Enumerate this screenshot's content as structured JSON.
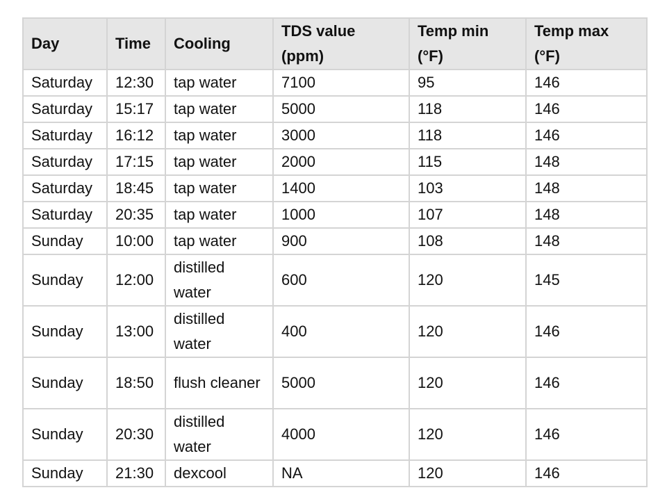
{
  "table": {
    "headers": [
      "Day",
      "Time",
      "Cooling",
      "TDS value (ppm)",
      "Temp min (°F)",
      "Temp max (°F)"
    ],
    "rows": [
      [
        "Saturday",
        "12:30",
        "tap water",
        "7100",
        "95",
        "146"
      ],
      [
        "Saturday",
        "15:17",
        "tap water",
        "5000",
        "118",
        "146"
      ],
      [
        "Saturday",
        "16:12",
        "tap water",
        "3000",
        "118",
        "146"
      ],
      [
        "Saturday",
        "17:15",
        "tap water",
        "2000",
        "115",
        "148"
      ],
      [
        "Saturday",
        "18:45",
        "tap water",
        "1400",
        "103",
        "148"
      ],
      [
        "Saturday",
        "20:35",
        "tap water",
        "1000",
        "107",
        "148"
      ],
      [
        "Sunday",
        "10:00",
        "tap water",
        "900",
        "108",
        "148"
      ],
      [
        "Sunday",
        "12:00",
        "distilled water",
        "600",
        "120",
        "145"
      ],
      [
        "Sunday",
        "13:00",
        "distilled water",
        "400",
        "120",
        "146"
      ],
      [
        "Sunday",
        "18:50",
        "flush cleaner",
        "5000",
        "120",
        "146"
      ],
      [
        "Sunday",
        "20:30",
        "distilled water",
        "4000",
        "120",
        "146"
      ],
      [
        "Sunday",
        "21:30",
        "dexcool",
        "NA",
        "120",
        "146"
      ]
    ]
  },
  "colors": {
    "header_background": "#e6e6e6",
    "border": "#d4d4d4",
    "text": "#111111"
  }
}
